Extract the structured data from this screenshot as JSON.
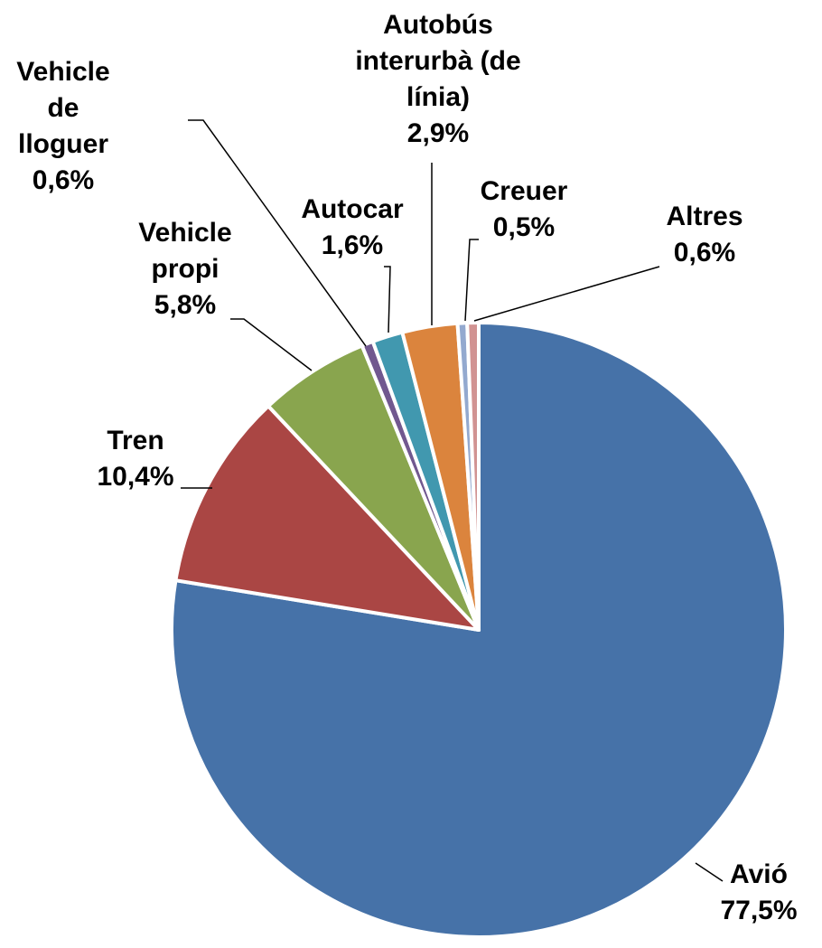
{
  "chart_data": {
    "type": "pie",
    "categories": [
      "Avió",
      "Tren",
      "Vehicle propi",
      "Vehicle de lloguer",
      "Autocar",
      "Autobús interurbà (de línia)",
      "Creuer",
      "Altres"
    ],
    "values": [
      77.5,
      10.4,
      5.8,
      0.6,
      1.6,
      2.9,
      0.5,
      0.6
    ],
    "value_labels": [
      "77,5%",
      "10,4%",
      "5,8%",
      "0,6%",
      "1,6%",
      "2,9%",
      "0,5%",
      "0,6%"
    ],
    "colors": [
      "#4672a8",
      "#aa4644",
      "#89a54e",
      "#71588f",
      "#4198af",
      "#db843d",
      "#93a9cf",
      "#d19392"
    ]
  }
}
